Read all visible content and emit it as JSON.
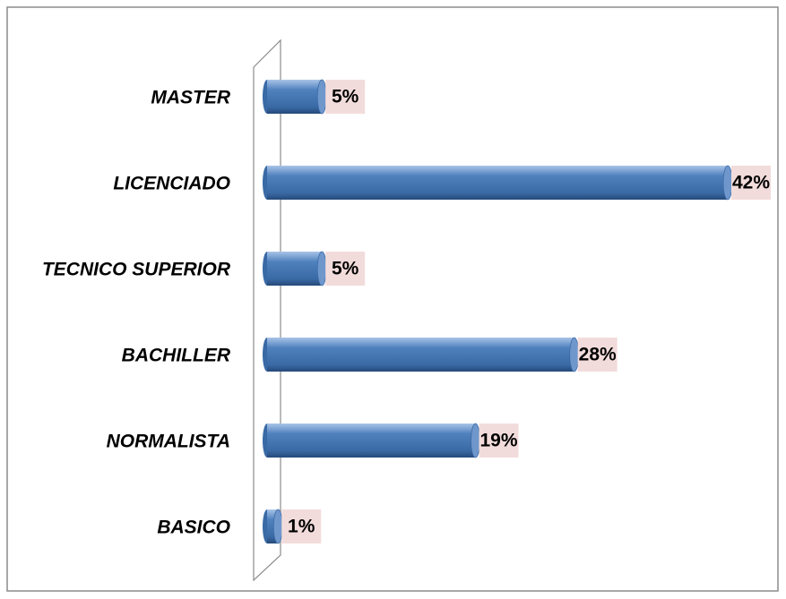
{
  "chart_data": {
    "type": "bar",
    "orientation": "horizontal",
    "categories": [
      "MASTER",
      "LICENCIADO",
      "TECNICO SUPERIOR",
      "BACHILLER",
      "NORMALISTA",
      "BASICO"
    ],
    "values": [
      5,
      42,
      5,
      28,
      19,
      1
    ],
    "value_labels": [
      "5%",
      "42%",
      "5%",
      "28%",
      "19%",
      "1%"
    ],
    "color": "#4f81bd",
    "xlim": [
      0,
      42
    ]
  }
}
